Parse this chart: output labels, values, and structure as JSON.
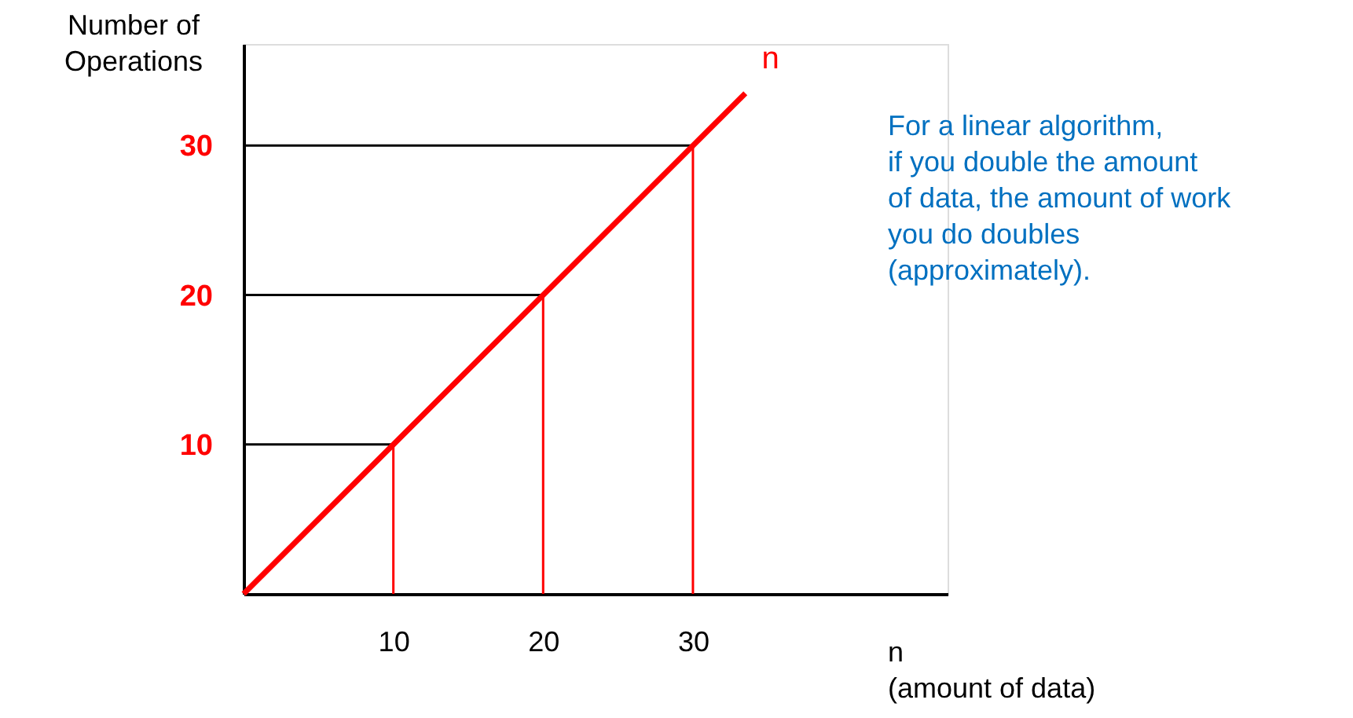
{
  "chart_data": {
    "type": "line",
    "x": [
      0,
      33.5
    ],
    "series": [
      {
        "name": "n",
        "color": "#ff0000",
        "values": [
          0,
          33.5
        ]
      }
    ],
    "xlim": [
      0,
      47
    ],
    "ylim": [
      0,
      36.8
    ],
    "xticks": [
      10,
      20,
      30
    ],
    "yticks": [
      10,
      20,
      30
    ],
    "xlabel": "n\n(amount of data)",
    "ylabel": "Number of\nOperations",
    "ref_lines": [
      {
        "axis": "y",
        "value": 10,
        "color": "#000000"
      },
      {
        "axis": "y",
        "value": 20,
        "color": "#000000"
      },
      {
        "axis": "y",
        "value": 30,
        "color": "#000000"
      },
      {
        "axis": "x",
        "value": 10,
        "color": "#ff0000"
      },
      {
        "axis": "x",
        "value": 20,
        "color": "#ff0000"
      },
      {
        "axis": "x",
        "value": 30,
        "color": "#ff0000"
      }
    ],
    "annotations": [
      "For a linear algorithm,\nif you double the amount\nof data, the amount of work\nyou do doubles\n(approximately)."
    ],
    "grid": false,
    "marker": "none",
    "line_style": "solid"
  }
}
